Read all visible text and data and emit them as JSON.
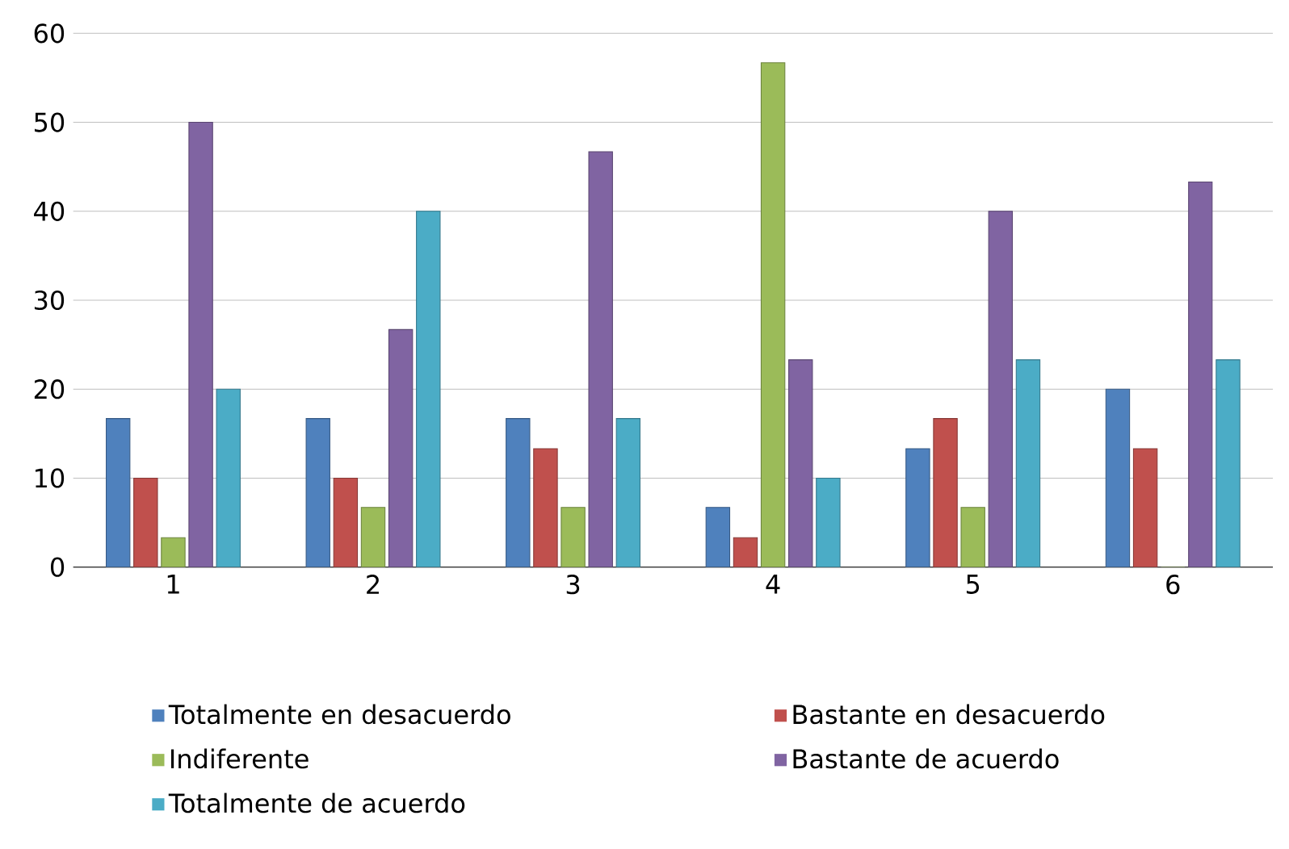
{
  "chart_data": {
    "type": "bar",
    "categories": [
      "1",
      "2",
      "3",
      "4",
      "5",
      "6"
    ],
    "series": [
      {
        "name": "Totalmente en desacuerdo",
        "color": "#4f81bd",
        "values": [
          16.7,
          16.7,
          16.7,
          6.7,
          13.3,
          20
        ]
      },
      {
        "name": "Bastante en desacuerdo",
        "color": "#c0504d",
        "values": [
          10,
          10,
          13.3,
          3.3,
          16.7,
          13.3
        ]
      },
      {
        "name": "Indiferente",
        "color": "#9bbb59",
        "values": [
          3.3,
          6.7,
          6.7,
          56.7,
          6.7,
          0
        ]
      },
      {
        "name": "Bastante de acuerdo",
        "color": "#8064a2",
        "values": [
          50,
          26.7,
          46.7,
          23.3,
          40,
          43.3
        ]
      },
      {
        "name": "Totalmente de acuerdo",
        "color": "#4bacc6",
        "values": [
          20,
          40,
          16.7,
          10,
          23.3,
          23.3
        ]
      }
    ],
    "ylim": [
      0,
      60
    ],
    "yticks": [
      0,
      10,
      20,
      30,
      40,
      50,
      60
    ],
    "grid": "y",
    "legend": "bottom"
  }
}
